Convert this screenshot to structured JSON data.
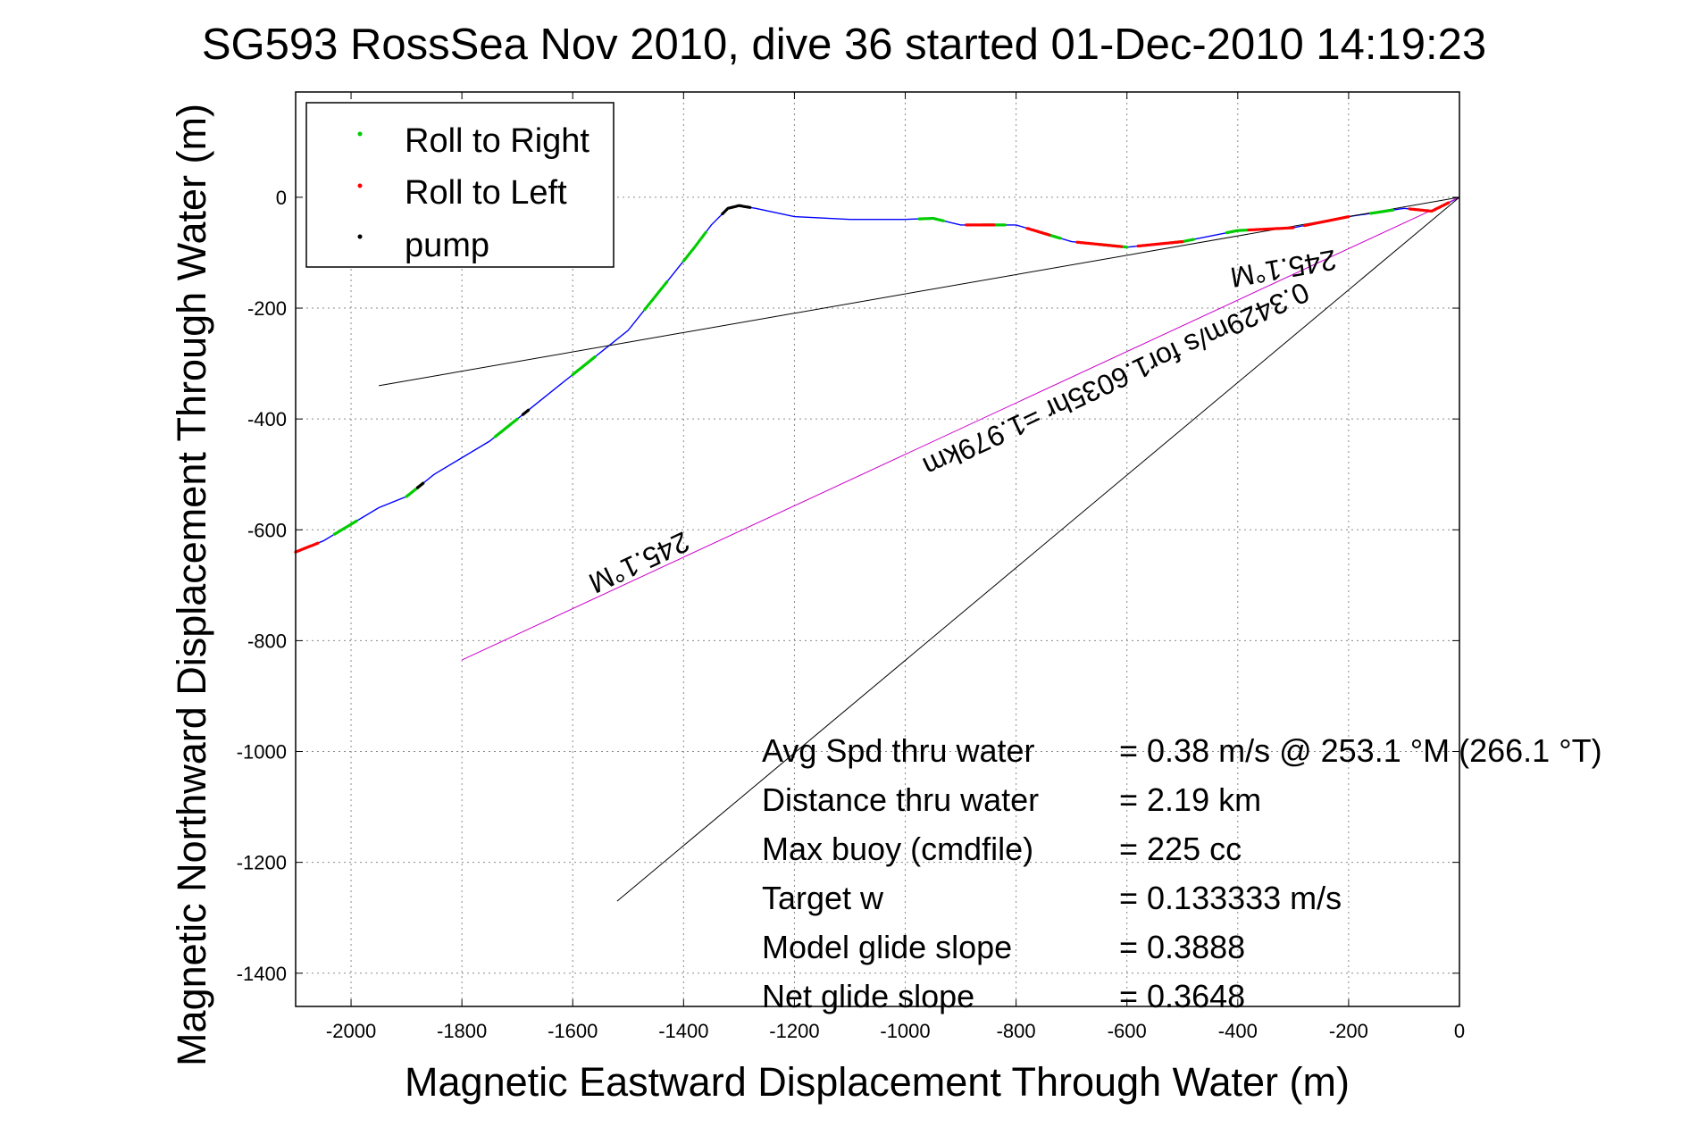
{
  "chart_data": {
    "type": "line",
    "title": "SG593 RossSea Nov 2010, dive 36 started 01-Dec-2010 14:19:23",
    "xlabel": "Magnetic Eastward Displacement Through Water (m)",
    "ylabel": "Magnetic Northward Displacement Through Water (m)",
    "xlim": [
      -2100,
      0
    ],
    "ylim": [
      -1460,
      190
    ],
    "xticks": [
      -2000,
      -1800,
      -1600,
      -1400,
      -1200,
      -1000,
      -800,
      -600,
      -400,
      -200,
      0
    ],
    "yticks": [
      0,
      -200,
      -400,
      -600,
      -800,
      -1000,
      -1200,
      -1400
    ],
    "grid": true,
    "legend_position": "top-left",
    "colors": {
      "track": "#0000ff",
      "roll_right": "#00cc00",
      "roll_left": "#ff0000",
      "pump": "#000000",
      "heading_line": "#cc00cc",
      "ref_line": "#000000"
    },
    "legend": [
      {
        "label": "Roll to Right",
        "color": "#00cc00"
      },
      {
        "label": "Roll to Left",
        "color": "#ff0000"
      },
      {
        "label": "pump",
        "color": "#000000"
      }
    ],
    "series": [
      {
        "name": "track",
        "color": "#0000ff",
        "x": [
          -2100,
          -2050,
          -2000,
          -1950,
          -1900,
          -1850,
          -1800,
          -1750,
          -1700,
          -1650,
          -1600,
          -1550,
          -1500,
          -1460,
          -1420,
          -1380,
          -1350,
          -1320,
          -1300,
          -1270,
          -1200,
          -1100,
          -1000,
          -950,
          -900,
          -800,
          -700,
          -600,
          -500,
          -400,
          -300,
          -200,
          -100,
          -50,
          0
        ],
        "y": [
          -640,
          -620,
          -590,
          -560,
          -540,
          -500,
          -470,
          -440,
          -400,
          -360,
          -320,
          -280,
          -240,
          -190,
          -140,
          -90,
          -50,
          -20,
          -15,
          -20,
          -35,
          -40,
          -40,
          -38,
          -50,
          -50,
          -80,
          -90,
          -80,
          -60,
          -55,
          -35,
          -20,
          -25,
          0
        ]
      },
      {
        "name": "heading line",
        "color": "#cc00cc",
        "x": [
          0,
          -1800
        ],
        "y": [
          0,
          -835
        ]
      },
      {
        "name": "reference line 1",
        "color": "#000000",
        "x": [
          0,
          -1950
        ],
        "y": [
          0,
          -340
        ]
      },
      {
        "name": "reference line 2",
        "color": "#000000",
        "x": [
          0,
          -1520
        ],
        "y": [
          0,
          -1270
        ]
      }
    ],
    "roll_right_segments": [
      [
        -2030,
        -1990
      ],
      [
        -1900,
        -1870
      ],
      [
        -1740,
        -1700
      ],
      [
        -1600,
        -1560
      ],
      [
        -1470,
        -1430
      ],
      [
        -1400,
        -1360
      ],
      [
        -975,
        -930
      ],
      [
        -860,
        -820
      ],
      [
        -760,
        -720
      ],
      [
        -650,
        -600
      ],
      [
        -520,
        -480
      ],
      [
        -420,
        -380
      ],
      [
        -160,
        -120
      ]
    ],
    "roll_left_segments": [
      [
        -2100,
        -2060
      ],
      [
        -890,
        -840
      ],
      [
        -780,
        -740
      ],
      [
        -690,
        -610
      ],
      [
        -580,
        -500
      ],
      [
        -380,
        -300
      ],
      [
        -280,
        -200
      ],
      [
        -90,
        -20
      ]
    ],
    "pump_segments": [
      [
        -1880,
        -1870
      ],
      [
        -1690,
        -1680
      ],
      [
        -1330,
        -1280
      ]
    ],
    "line_labels": [
      {
        "text": "245.1°M",
        "rotation": "upside-down"
      },
      {
        "text": "0.3429m/s for1.6035hr =1.979km",
        "rotation": "upside-down"
      },
      {
        "text": "245.1°M",
        "rotation": "upside-down"
      }
    ],
    "annotations": [
      {
        "label": "Avg Spd thru water",
        "value": "=  0.38 m/s @ 253.1 °M (266.1 °T)"
      },
      {
        "label": "Distance thru water",
        "value": "=  2.19 km"
      },
      {
        "label": "Max buoy (cmdfile)",
        "value": "= 225 cc"
      },
      {
        "label": "Target w",
        "value": "= 0.133333 m/s"
      },
      {
        "label": "Model glide slope",
        "value": "= 0.3888"
      },
      {
        "label": "Net glide slope",
        "value": "= 0.3648"
      }
    ]
  }
}
